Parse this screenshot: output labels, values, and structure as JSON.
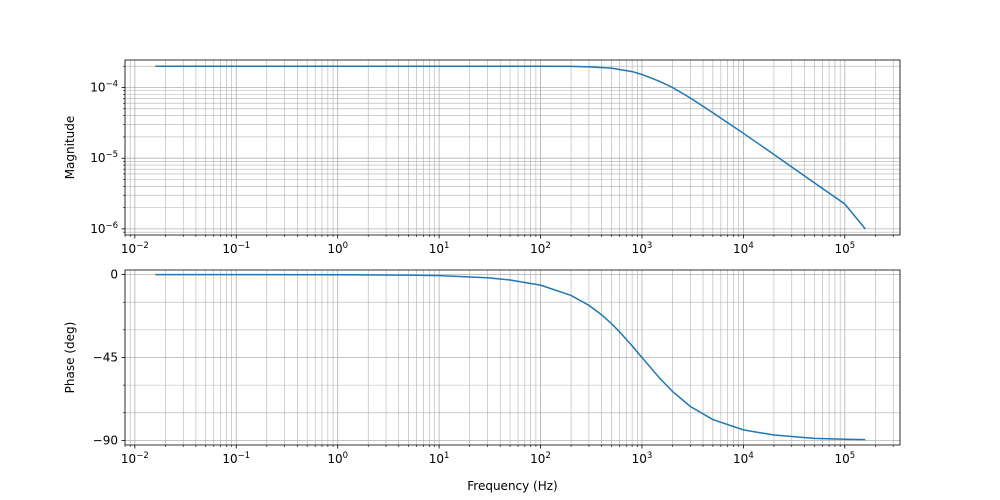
{
  "chart_data": [
    {
      "type": "line",
      "ylabel": "Magnitude",
      "xlabel": "",
      "xscale": "log",
      "yscale": "log",
      "xlim": [
        0.008,
        350000
      ],
      "ylim": [
        8.2e-07,
        0.000245
      ],
      "grid": true,
      "color": "#1f77b4",
      "x_ticks": [
        {
          "mantissa": "10",
          "exponent": "−2"
        },
        {
          "mantissa": "10",
          "exponent": "−1"
        },
        {
          "mantissa": "10",
          "exponent": "0"
        },
        {
          "mantissa": "10",
          "exponent": "1"
        },
        {
          "mantissa": "10",
          "exponent": "2"
        },
        {
          "mantissa": "10",
          "exponent": "3"
        },
        {
          "mantissa": "10",
          "exponent": "4"
        },
        {
          "mantissa": "10",
          "exponent": "5"
        }
      ],
      "y_ticks": [
        {
          "mantissa": "10",
          "exponent": "−6"
        },
        {
          "mantissa": "10",
          "exponent": "−5"
        },
        {
          "mantissa": "10",
          "exponent": "−4"
        }
      ],
      "x": [
        0.0159,
        0.1,
        1,
        10,
        50,
        100,
        200,
        300,
        500,
        800,
        1000,
        1500,
        2000,
        3000,
        5000,
        10000,
        20000,
        50000,
        100000,
        159000
      ],
      "y": [
        0.0002,
        0.0002,
        0.0002,
        0.0002,
        0.0001999,
        0.0001997,
        0.000199,
        0.000196,
        0.000188,
        0.000168,
        0.000153,
        0.000122,
        0.0001,
        7.1e-05,
        4.4e-05,
        2.25e-05,
        1.13e-05,
        4.5e-06,
        2.25e-06,
        1e-06
      ]
    },
    {
      "type": "line",
      "ylabel": "Phase (deg)",
      "xlabel": "Frequency (Hz)",
      "xscale": "log",
      "yscale": "linear",
      "xlim": [
        0.008,
        350000
      ],
      "ylim": [
        -92.5,
        2.5
      ],
      "grid": true,
      "color": "#1f77b4",
      "x_ticks": [
        {
          "mantissa": "10",
          "exponent": "−2"
        },
        {
          "mantissa": "10",
          "exponent": "−1"
        },
        {
          "mantissa": "10",
          "exponent": "0"
        },
        {
          "mantissa": "10",
          "exponent": "1"
        },
        {
          "mantissa": "10",
          "exponent": "2"
        },
        {
          "mantissa": "10",
          "exponent": "3"
        },
        {
          "mantissa": "10",
          "exponent": "4"
        },
        {
          "mantissa": "10",
          "exponent": "5"
        }
      ],
      "y_ticks": [
        {
          "value": -90,
          "label": "−90"
        },
        {
          "value": -45,
          "label": "−45"
        },
        {
          "value": 0,
          "label": "0"
        }
      ],
      "x": [
        0.0159,
        0.1,
        1,
        5,
        10,
        30,
        50,
        100,
        200,
        300,
        400,
        500,
        600,
        800,
        1000,
        1500,
        2000,
        3000,
        5000,
        10000,
        20000,
        50000,
        100000,
        159000
      ],
      "y": [
        0,
        0,
        -0.06,
        -0.29,
        -0.57,
        -1.7,
        -2.9,
        -5.7,
        -11.3,
        -16.7,
        -21.8,
        -26.6,
        -31.0,
        -38.7,
        -45.0,
        -56.3,
        -63.4,
        -71.6,
        -78.7,
        -84.3,
        -87.1,
        -88.9,
        -89.4,
        -89.6
      ]
    }
  ]
}
